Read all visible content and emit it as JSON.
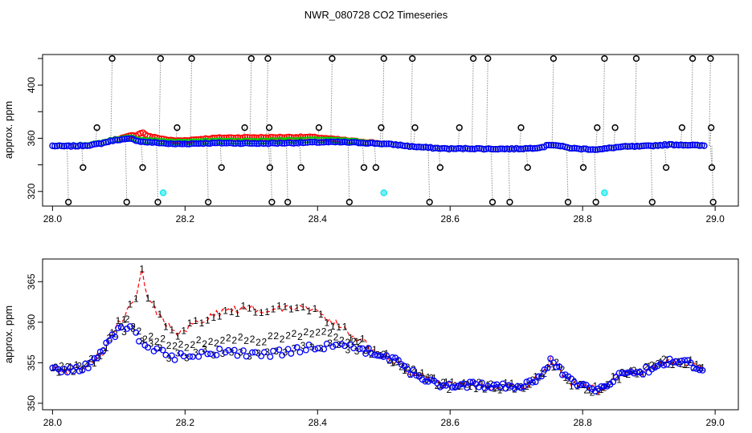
{
  "figure_title": "NWR_080728  CO2 Timeseries",
  "colors": {
    "black": "#000000",
    "red": "#ff0000",
    "green": "#00cd00",
    "blue": "#0000ff",
    "cyan": "#00e5ee",
    "grey": "#8c8c8c"
  },
  "chart_data": [
    {
      "type": "scatter",
      "panel": "top",
      "ylabel": "approx. ppm",
      "xlabel": "",
      "xlim": [
        27.985,
        29.035
      ],
      "ylim": [
        309,
        423
      ],
      "x_ticks": [
        28.0,
        28.2,
        28.4,
        28.6,
        28.8,
        29.0
      ],
      "x_tick_labels": [
        "28.0",
        "28.2",
        "28.4",
        "28.6",
        "28.8",
        "29.0"
      ],
      "y_ticks": [
        320,
        360,
        400
      ],
      "y_tick_labels": [
        "320",
        "360",
        "400"
      ],
      "extra_y_ticks": [
        340,
        380,
        420
      ],
      "series": [
        {
          "name": "span marker 420",
          "color": "black",
          "marker": "circle",
          "x": [
            28.09,
            28.163,
            28.21,
            28.3,
            28.325,
            28.422,
            28.5,
            28.543,
            28.635,
            28.657,
            28.756,
            28.833,
            28.881,
            28.966,
            28.993
          ],
          "y": [
            420,
            420,
            420,
            420,
            420,
            420,
            420,
            420,
            420,
            420,
            420,
            420,
            420,
            420,
            420
          ]
        },
        {
          "name": "span marker 368",
          "color": "black",
          "marker": "circle",
          "x": [
            28.067,
            28.188,
            28.29,
            28.327,
            28.402,
            28.496,
            28.547,
            28.614,
            28.707,
            28.822,
            28.849,
            28.95,
            28.994
          ],
          "y": [
            368,
            368,
            368,
            368,
            368,
            368,
            368,
            368,
            368,
            368,
            368,
            368,
            368
          ]
        },
        {
          "name": "span marker 338",
          "color": "black",
          "marker": "circle",
          "x": [
            28.046,
            28.136,
            28.255,
            28.328,
            28.375,
            28.47,
            28.488,
            28.585,
            28.717,
            28.801,
            28.926,
            28.995
          ],
          "y": [
            338,
            338,
            338,
            338,
            338,
            338,
            338,
            338,
            338,
            338,
            338,
            338
          ]
        },
        {
          "name": "span marker 312",
          "color": "black",
          "marker": "circle",
          "x": [
            28.024,
            28.112,
            28.159,
            28.235,
            28.331,
            28.355,
            28.448,
            28.569,
            28.664,
            28.69,
            28.778,
            28.82,
            28.905,
            28.997
          ],
          "y": [
            312,
            312,
            312,
            312,
            312,
            312,
            312,
            312,
            312,
            312,
            312,
            312,
            312,
            312
          ]
        },
        {
          "name": "cyan flag",
          "color": "cyan",
          "marker": "circle",
          "x": [
            28.167,
            28.5,
            28.833
          ],
          "y": [
            319,
            319,
            319
          ]
        }
      ]
    },
    {
      "type": "scatter",
      "panel": "bottom",
      "ylabel": "approx. ppm",
      "xlabel": "",
      "xlim": [
        27.985,
        29.035
      ],
      "ylim": [
        349.2,
        367.8
      ],
      "x_ticks": [
        28.0,
        28.2,
        28.4,
        28.6,
        28.8,
        29.0
      ],
      "x_tick_labels": [
        "28.0",
        "28.2",
        "28.4",
        "28.6",
        "28.8",
        "29.0"
      ],
      "y_ticks": [
        350,
        355,
        360,
        365
      ],
      "y_tick_labels": [
        "350",
        "355",
        "360",
        "365"
      ],
      "series_labels": [
        "1",
        "2",
        "3"
      ],
      "base_curve": {
        "x": [
          28.0,
          28.02,
          28.04,
          28.06,
          28.075,
          28.09,
          28.1,
          28.11,
          28.118,
          28.125,
          28.135,
          28.145,
          28.16,
          28.18,
          28.2,
          28.23,
          28.26,
          28.29,
          28.32,
          28.35,
          28.38,
          28.4,
          28.43,
          28.46,
          28.48,
          28.5,
          28.52,
          28.54,
          28.56,
          28.58,
          28.6,
          28.63,
          28.66,
          28.68,
          28.7,
          28.72,
          28.74,
          28.75,
          28.76,
          28.775,
          28.79,
          28.81,
          28.82,
          28.83,
          28.845,
          28.86,
          28.875,
          28.89,
          28.91,
          28.93,
          28.95,
          28.97,
          28.985
        ],
        "y": [
          354.3,
          354.0,
          354.3,
          355.0,
          356.3,
          358.2,
          359.0,
          359.2,
          359.6,
          358.6,
          357.4,
          357.0,
          356.6,
          355.7,
          355.8,
          356.3,
          356.4,
          356.2,
          356.1,
          356.4,
          356.7,
          357.0,
          357.1,
          356.7,
          356.3,
          355.8,
          355.1,
          353.9,
          353.2,
          352.5,
          352.1,
          352.3,
          352.0,
          352.0,
          352.1,
          352.4,
          353.4,
          355.2,
          354.8,
          353.2,
          352.2,
          351.8,
          351.6,
          351.8,
          352.9,
          353.6,
          353.8,
          353.9,
          354.6,
          355.2,
          355.1,
          354.7,
          354.3
        ]
      },
      "red_excess_curve": {
        "x": [
          28.0,
          28.08,
          28.1,
          28.115,
          28.125,
          28.135,
          28.145,
          28.16,
          28.175,
          28.19,
          28.22,
          28.25,
          28.3,
          28.35,
          28.39,
          28.42,
          28.45,
          28.48,
          28.5,
          28.6,
          28.7,
          28.8,
          29.0
        ],
        "y": [
          0.0,
          0.0,
          0.8,
          2.5,
          4.0,
          9.0,
          5.5,
          4.4,
          3.5,
          3.0,
          3.8,
          4.8,
          5.6,
          5.5,
          5.0,
          3.0,
          1.5,
          0.6,
          0.0,
          0.0,
          0.0,
          0.0,
          0.0
        ]
      },
      "green_excess_curve": {
        "x": [
          28.0,
          28.1,
          28.15,
          28.2,
          28.3,
          28.35,
          28.4,
          28.45,
          28.48,
          28.5,
          29.0
        ],
        "y": [
          0.0,
          0.4,
          1.3,
          1.4,
          1.6,
          2.0,
          1.8,
          0.9,
          0.2,
          0.0,
          0.0
        ]
      }
    }
  ]
}
